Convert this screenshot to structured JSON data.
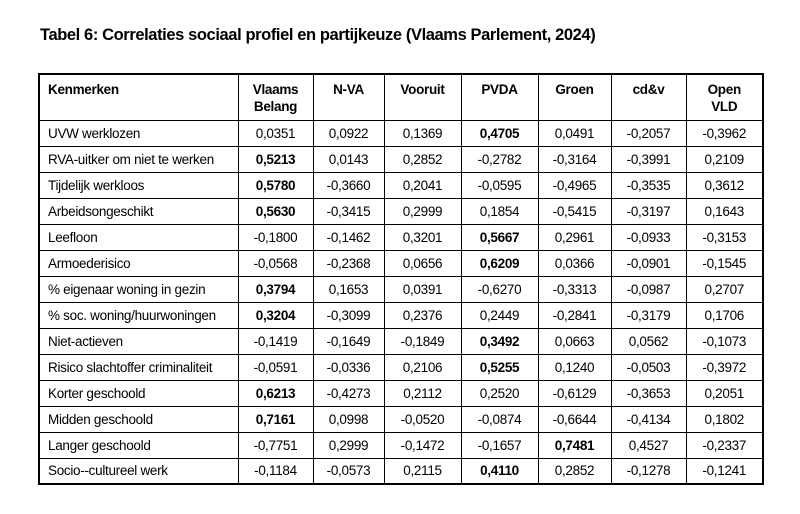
{
  "title": "Tabel 6: Correlaties sociaal profiel en partijkeuze (Vlaams Parlement, 2024)",
  "table": {
    "columns": [
      "Kenmerken",
      "Vlaams Belang",
      "N-VA",
      "Vooruit",
      "PVDA",
      "Groen",
      "cd&v",
      "Open VLD"
    ],
    "rows": [
      {
        "label": "UVW werklozen",
        "values": [
          "0,0351",
          "0,0922",
          "0,1369",
          "0,4705",
          "0,0491",
          "-0,2057",
          "-0,3962"
        ],
        "bold": [
          3
        ]
      },
      {
        "label": "RVA-uitker om niet te werken",
        "values": [
          "0,5213",
          "0,0143",
          "0,2852",
          "-0,2782",
          "-0,3164",
          "-0,3991",
          "0,2109"
        ],
        "bold": [
          0
        ]
      },
      {
        "label": "Tijdelijk werkloos",
        "values": [
          "0,5780",
          "-0,3660",
          "0,2041",
          "-0,0595",
          "-0,4965",
          "-0,3535",
          "0,3612"
        ],
        "bold": [
          0
        ]
      },
      {
        "label": "Arbeidsongeschikt",
        "values": [
          "0,5630",
          "-0,3415",
          "0,2999",
          "0,1854",
          "-0,5415",
          "-0,3197",
          "0,1643"
        ],
        "bold": [
          0
        ]
      },
      {
        "label": "Leefloon",
        "values": [
          "-0,1800",
          "-0,1462",
          "0,3201",
          "0,5667",
          "0,2961",
          "-0,0933",
          "-0,3153"
        ],
        "bold": [
          3
        ]
      },
      {
        "label": "Armoederisico",
        "values": [
          "-0,0568",
          "-0,2368",
          "0,0656",
          "0,6209",
          "0,0366",
          "-0,0901",
          "-0,1545"
        ],
        "bold": [
          3
        ]
      },
      {
        "label": "% eigenaar woning  in gezin",
        "values": [
          "0,3794",
          "0,1653",
          "0,0391",
          "-0,6270",
          "-0,3313",
          "-0,0987",
          "0,2707"
        ],
        "bold": [
          0
        ]
      },
      {
        "label": "% soc. woning/huurwoningen",
        "values": [
          "0,3204",
          "-0,3099",
          "0,2376",
          "0,2449",
          "-0,2841",
          "-0,3179",
          "0,1706"
        ],
        "bold": [
          0
        ]
      },
      {
        "label": "Niet-actieven",
        "values": [
          "-0,1419",
          "-0,1649",
          "-0,1849",
          "0,3492",
          "0,0663",
          "0,0562",
          "-0,1073"
        ],
        "bold": [
          3
        ]
      },
      {
        "label": "Risico slachtoffer criminaliteit",
        "values": [
          "-0,0591",
          "-0,0336",
          "0,2106",
          "0,5255",
          "0,1240",
          "-0,0503",
          "-0,3972"
        ],
        "bold": [
          3
        ]
      },
      {
        "label": "Korter geschoold",
        "values": [
          "0,6213",
          "-0,4273",
          "0,2112",
          "0,2520",
          "-0,6129",
          "-0,3653",
          "0,2051"
        ],
        "bold": [
          0
        ]
      },
      {
        "label": "Midden geschoold",
        "values": [
          "0,7161",
          "0,0998",
          "-0,0520",
          "-0,0874",
          "-0,6644",
          "-0,4134",
          "0,1802"
        ],
        "bold": [
          0
        ]
      },
      {
        "label": "Langer geschoold",
        "values": [
          "-0,7751",
          "0,2999",
          "-0,1472",
          "-0,1657",
          "0,7481",
          "0,4527",
          "-0,2337"
        ],
        "bold": [
          4
        ]
      },
      {
        "label": "Socio--cultureel werk",
        "values": [
          "-0,1184",
          "-0,0573",
          "0,2115",
          "0,4110",
          "0,2852",
          "-0,1278",
          "-0,1241"
        ],
        "bold": [
          3
        ]
      }
    ]
  }
}
